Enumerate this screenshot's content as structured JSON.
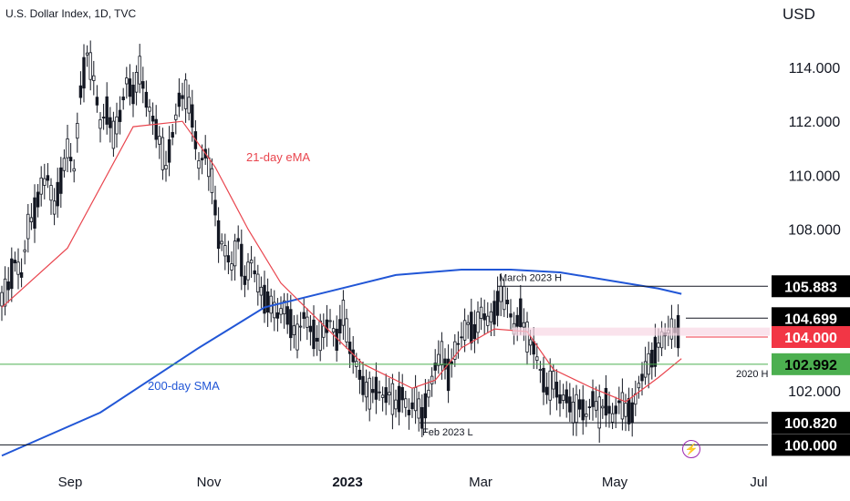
{
  "header": {
    "title": "U.S. Dollar Index, 1D, TVC",
    "currency": "USD"
  },
  "indicator_icon": "lightning-icon",
  "chart_data": {
    "type": "candlestick",
    "title": "U.S. Dollar Index, 1D, TVC",
    "ylabel": "USD",
    "ylim": [
      99.5,
      116.5
    ],
    "y_ticks": [
      "114.000",
      "112.000",
      "110.000",
      "108.000",
      "102.000"
    ],
    "x_ticks": [
      {
        "label": "Sep",
        "bold": false
      },
      {
        "label": "Nov",
        "bold": false
      },
      {
        "label": "2023",
        "bold": true
      },
      {
        "label": "Mar",
        "bold": false
      },
      {
        "label": "May",
        "bold": false
      },
      {
        "label": "Jul",
        "bold": false
      }
    ],
    "ohlc_close_path": [
      [
        0,
        105.4
      ],
      [
        2,
        105.9
      ],
      [
        4,
        106.8
      ],
      [
        6,
        106.3
      ],
      [
        8,
        108.1
      ],
      [
        10,
        108.6
      ],
      [
        12,
        109.6
      ],
      [
        14,
        109.9
      ],
      [
        16,
        108.8
      ],
      [
        18,
        109.8
      ],
      [
        20,
        111.0
      ],
      [
        22,
        110.2
      ],
      [
        24,
        113.1
      ],
      [
        26,
        114.5
      ],
      [
        28,
        113.6
      ],
      [
        30,
        111.9
      ],
      [
        32,
        112.4
      ],
      [
        34,
        111.5
      ],
      [
        36,
        112.2
      ],
      [
        38,
        113.5
      ],
      [
        40,
        113.0
      ],
      [
        42,
        113.9
      ],
      [
        44,
        112.8
      ],
      [
        46,
        112.1
      ],
      [
        48,
        111.3
      ],
      [
        50,
        110.3
      ],
      [
        52,
        111.5
      ],
      [
        54,
        112.8
      ],
      [
        56,
        113.0
      ],
      [
        58,
        112.2
      ],
      [
        60,
        110.4
      ],
      [
        62,
        110.8
      ],
      [
        64,
        109.8
      ],
      [
        66,
        107.8
      ],
      [
        68,
        107.2
      ],
      [
        70,
        106.6
      ],
      [
        72,
        107.6
      ],
      [
        74,
        106.1
      ],
      [
        76,
        106.8
      ],
      [
        78,
        106.0
      ],
      [
        80,
        105.4
      ],
      [
        82,
        105.2
      ],
      [
        84,
        104.8
      ],
      [
        86,
        105.1
      ],
      [
        88,
        104.5
      ],
      [
        90,
        104.0
      ],
      [
        92,
        104.8
      ],
      [
        94,
        104.3
      ],
      [
        96,
        103.9
      ],
      [
        98,
        104.2
      ],
      [
        100,
        104.6
      ],
      [
        102,
        103.9
      ],
      [
        104,
        104.9
      ],
      [
        106,
        103.6
      ],
      [
        108,
        103.0
      ],
      [
        110,
        102.2
      ],
      [
        112,
        101.9
      ],
      [
        114,
        102.1
      ],
      [
        116,
        101.8
      ],
      [
        118,
        101.9
      ],
      [
        120,
        101.5
      ],
      [
        122,
        101.9
      ],
      [
        124,
        101.2
      ],
      [
        126,
        101.7
      ],
      [
        128,
        101.0
      ],
      [
        130,
        101.9
      ],
      [
        132,
        102.9
      ],
      [
        134,
        103.4
      ],
      [
        136,
        102.6
      ],
      [
        138,
        103.5
      ],
      [
        140,
        104.0
      ],
      [
        142,
        104.5
      ],
      [
        144,
        104.2
      ],
      [
        146,
        104.9
      ],
      [
        148,
        104.6
      ],
      [
        150,
        104.9
      ],
      [
        152,
        105.6
      ],
      [
        154,
        105.3
      ],
      [
        156,
        104.3
      ],
      [
        158,
        104.9
      ],
      [
        160,
        104.0
      ],
      [
        162,
        103.6
      ],
      [
        164,
        102.8
      ],
      [
        166,
        102.0
      ],
      [
        168,
        102.4
      ],
      [
        170,
        101.7
      ],
      [
        172,
        101.8
      ],
      [
        174,
        101.2
      ],
      [
        176,
        101.5
      ],
      [
        178,
        101.1
      ],
      [
        180,
        101.7
      ],
      [
        182,
        101.2
      ],
      [
        184,
        101.6
      ],
      [
        186,
        101.0
      ],
      [
        188,
        101.6
      ],
      [
        190,
        101.3
      ],
      [
        192,
        101.2
      ],
      [
        194,
        102.2
      ],
      [
        196,
        102.8
      ],
      [
        198,
        103.2
      ],
      [
        200,
        103.7
      ],
      [
        202,
        104.1
      ],
      [
        204,
        104.3
      ],
      [
        206,
        104.2
      ],
      [
        207,
        103.9
      ]
    ],
    "series": [
      {
        "name": "21-day eMA",
        "color": "#e9454e"
      },
      {
        "name": "200-day SMA",
        "color": "#2156d6"
      }
    ],
    "levels": [
      {
        "label": "March 2023 H",
        "value": "105.883",
        "bg": "#000000",
        "fg": "#ffffff"
      },
      {
        "label": "",
        "value": "104.699",
        "bg": "#000000",
        "fg": "#ffffff"
      },
      {
        "label": "",
        "value": "104.000",
        "bg": "#f23645",
        "fg": "#ffffff"
      },
      {
        "label": "2020 H",
        "value": "102.992",
        "bg": "#4caf50",
        "fg": "#000000"
      },
      {
        "label": "Feb 2023 L",
        "value": "100.820",
        "bg": "#000000",
        "fg": "#ffffff"
      },
      {
        "label": "",
        "value": "100.000",
        "bg": "#000000",
        "fg": "#ffffff"
      }
    ]
  }
}
